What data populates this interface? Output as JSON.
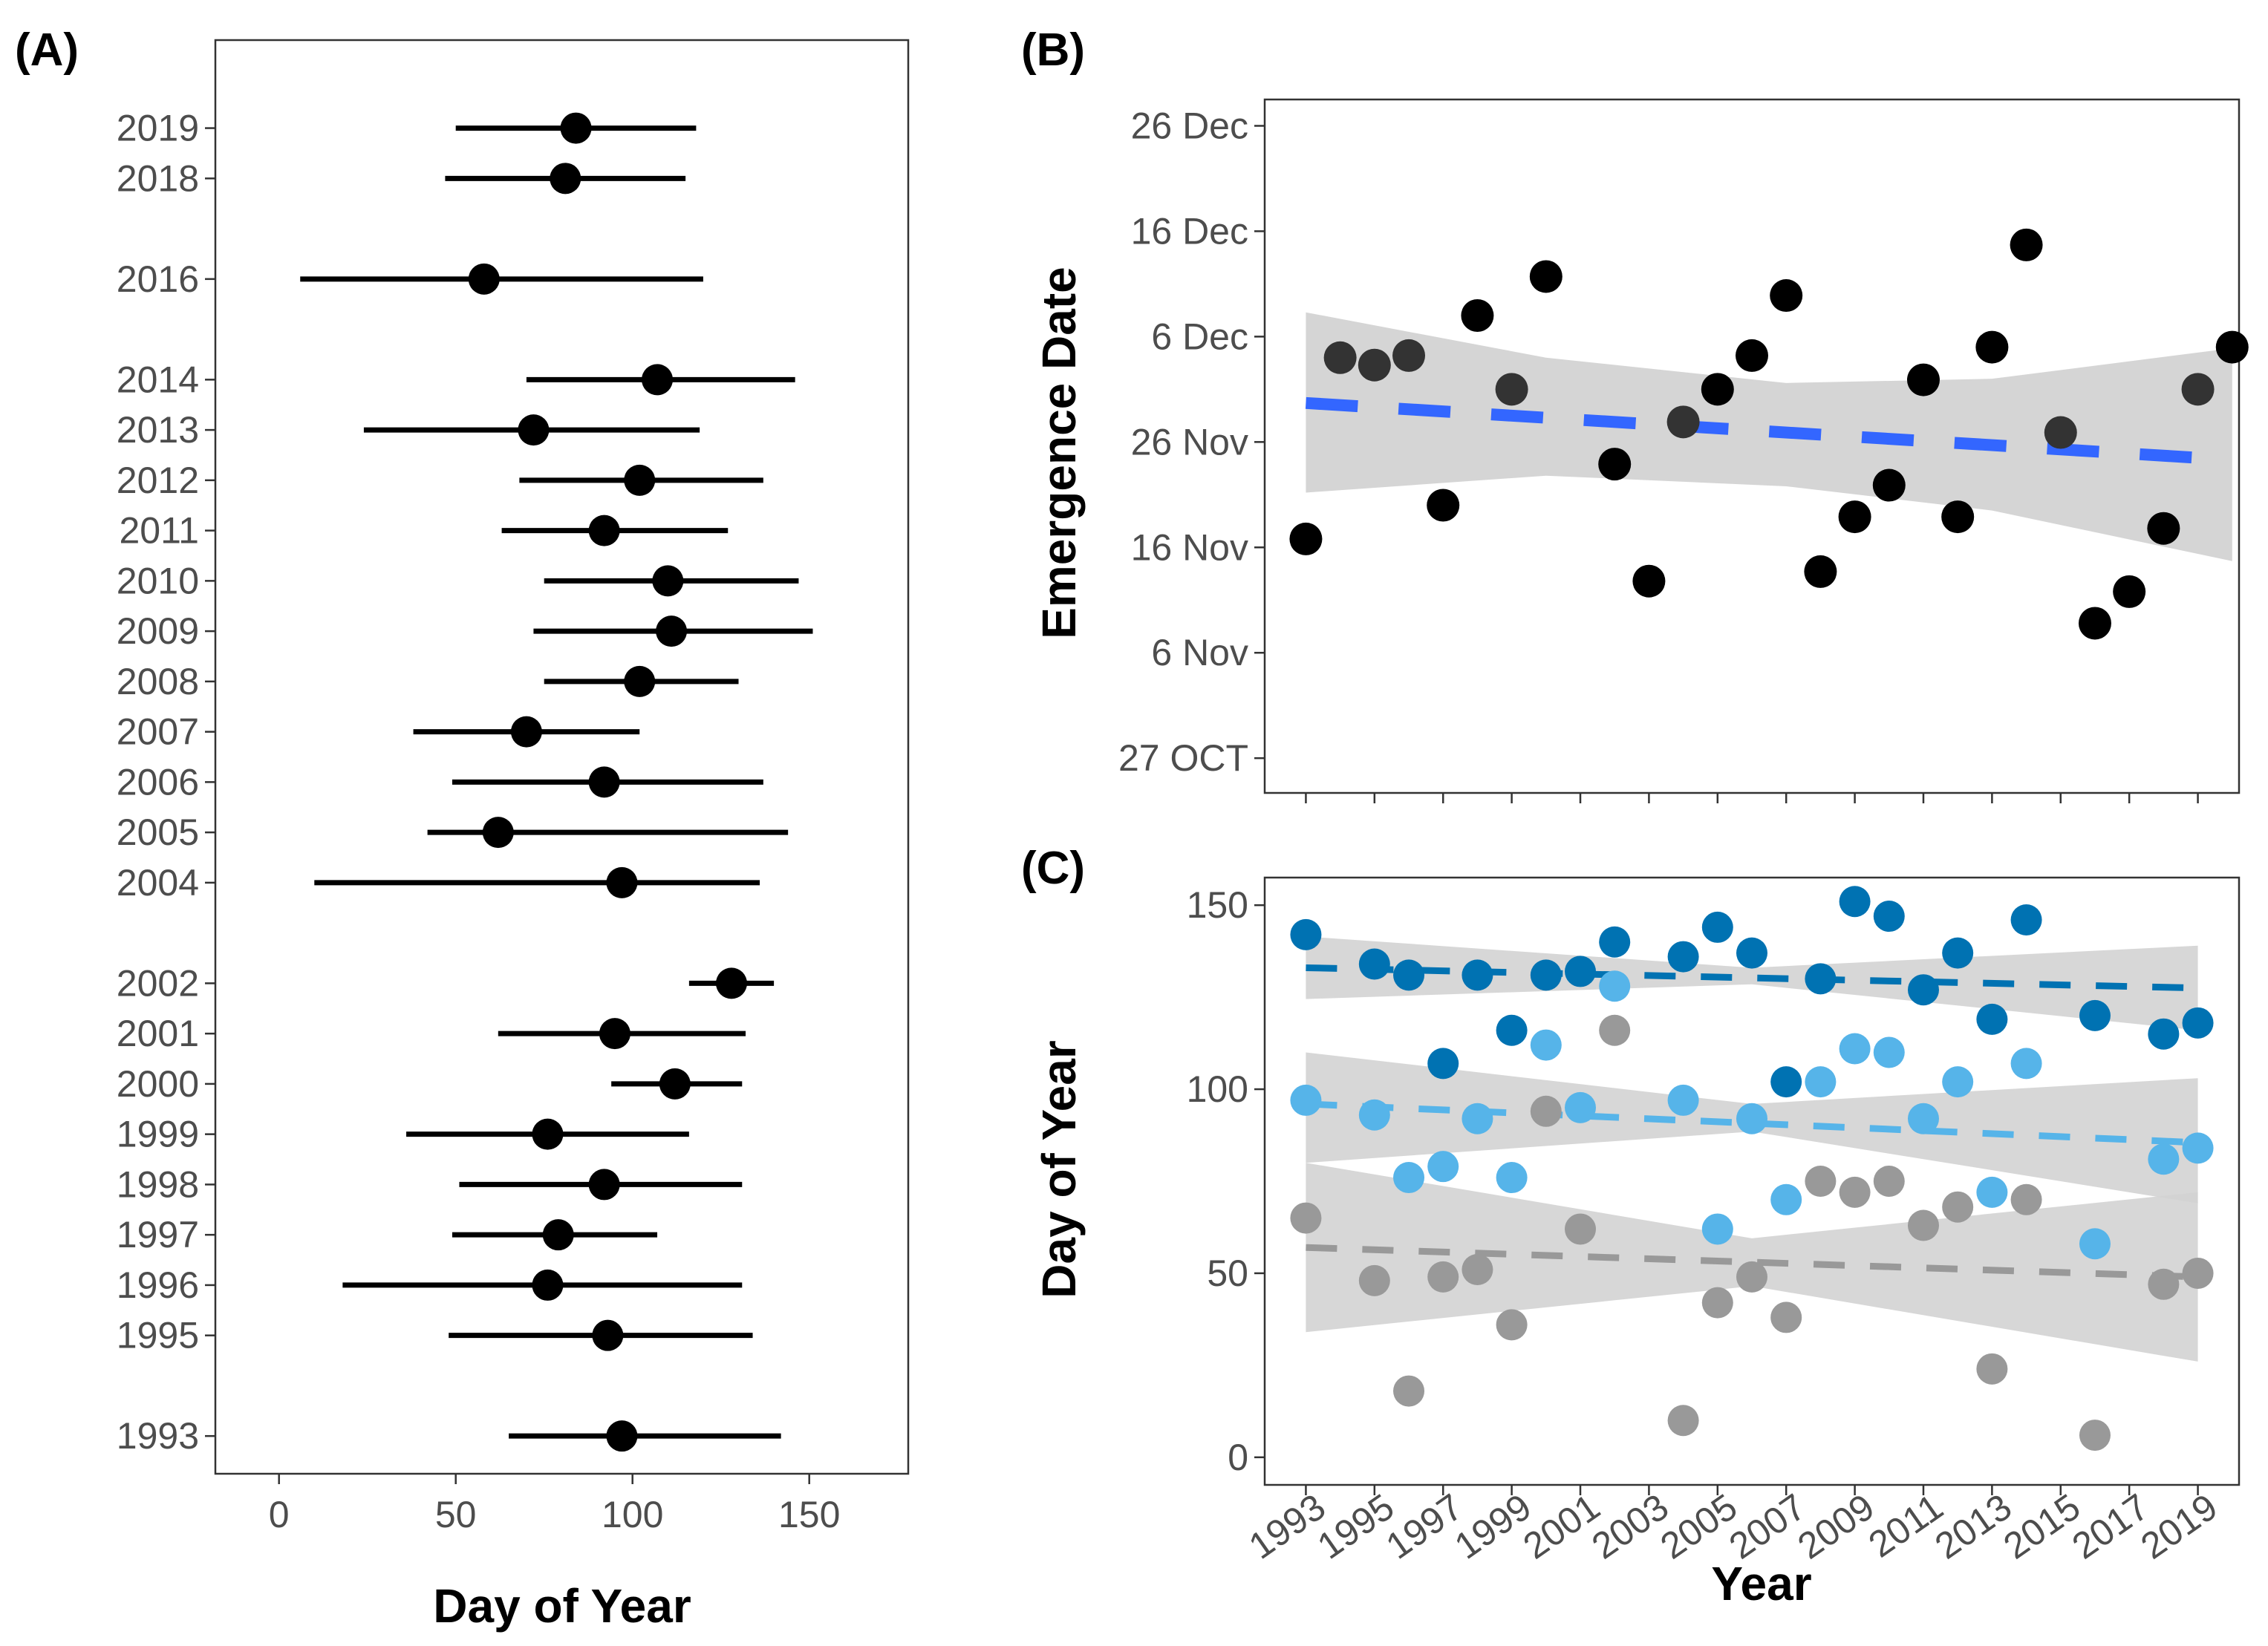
{
  "figure": {
    "panel_labels": {
      "a": "(A)",
      "b": "(B)",
      "c": "(C)"
    },
    "colors": {
      "points": "#000000",
      "ribbon": "#d3d3d3",
      "trend_b": "#3366ff",
      "early": "#0072b2",
      "mid": "#56b4e9",
      "late": "#999999",
      "axis": "#333333",
      "tick_text": "#4d4d4d"
    }
  },
  "chart_data": [
    {
      "id": "A",
      "type": "scatter",
      "title": "",
      "xlabel": "Day of Year",
      "ylabel": "",
      "xlim": [
        -18,
        178
      ],
      "xticks": [
        0,
        50,
        100,
        150
      ],
      "ylim": [
        1992.25,
        2020.75
      ],
      "grid": false,
      "rows": [
        {
          "year": 2019,
          "label": "2019",
          "mean": 84,
          "low": 50,
          "high": 118
        },
        {
          "year": 2018,
          "label": "2018",
          "mean": 81,
          "low": 47,
          "high": 115
        },
        {
          "year": 2016,
          "label": "2016",
          "mean": 58,
          "low": 6,
          "high": 120
        },
        {
          "year": 2014,
          "label": "2014",
          "mean": 107,
          "low": 70,
          "high": 146
        },
        {
          "year": 2013,
          "label": "2013",
          "mean": 72,
          "low": 24,
          "high": 119
        },
        {
          "year": 2012,
          "label": "2012",
          "mean": 102,
          "low": 68,
          "high": 137
        },
        {
          "year": 2011,
          "label": "2011",
          "mean": 92,
          "low": 63,
          "high": 127
        },
        {
          "year": 2010,
          "label": "2010",
          "mean": 110,
          "low": 75,
          "high": 147
        },
        {
          "year": 2009,
          "label": "2009",
          "mean": 111,
          "low": 72,
          "high": 151
        },
        {
          "year": 2008,
          "label": "2008",
          "mean": 102,
          "low": 75,
          "high": 130
        },
        {
          "year": 2007,
          "label": "2007",
          "mean": 70,
          "low": 38,
          "high": 102
        },
        {
          "year": 2006,
          "label": "2006",
          "mean": 92,
          "low": 49,
          "high": 137
        },
        {
          "year": 2005,
          "label": "2005",
          "mean": 62,
          "low": 42,
          "high": 144
        },
        {
          "year": 2004,
          "label": "2004",
          "mean": 97,
          "low": 10,
          "high": 136
        },
        {
          "year": 2002,
          "label": "2002",
          "mean": 128,
          "low": 116,
          "high": 140
        },
        {
          "year": 2001,
          "label": "2001",
          "mean": 95,
          "low": 62,
          "high": 132
        },
        {
          "year": 2000,
          "label": "2000",
          "mean": 112,
          "low": 94,
          "high": 131
        },
        {
          "year": 1999,
          "label": "1999",
          "mean": 76,
          "low": 36,
          "high": 116
        },
        {
          "year": 1998,
          "label": "1998",
          "mean": 92,
          "low": 51,
          "high": 131
        },
        {
          "year": 1997,
          "label": "1997",
          "mean": 79,
          "low": 49,
          "high": 107
        },
        {
          "year": 1996,
          "label": "1996",
          "mean": 76,
          "low": 18,
          "high": 131
        },
        {
          "year": 1995,
          "label": "1995",
          "mean": 93,
          "low": 48,
          "high": 134
        },
        {
          "year": 1993,
          "label": "1993",
          "mean": 97,
          "low": 65,
          "high": 142
        }
      ]
    },
    {
      "id": "B",
      "type": "scatter",
      "title": "",
      "xlabel": "",
      "ylabel": "Emergence Date",
      "ylim_days": [
        -3.3,
        62.5
      ],
      "yticks": [
        {
          "value": 0,
          "label": "27 OCT"
        },
        {
          "value": 10,
          "label": "6 Nov"
        },
        {
          "value": 20,
          "label": "16 Nov"
        },
        {
          "value": 30,
          "label": "26 Nov"
        },
        {
          "value": 40,
          "label": "6 Dec"
        },
        {
          "value": 50,
          "label": "16 Dec"
        },
        {
          "value": 60,
          "label": "26 Dec"
        }
      ],
      "xlim": [
        1991.8,
        2020.2
      ],
      "grid": false,
      "points": [
        {
          "year": 1993,
          "value": 20.8,
          "overlap": false
        },
        {
          "year": 1994,
          "value": 38.0,
          "overlap": true
        },
        {
          "year": 1995,
          "value": 37.3,
          "overlap": true
        },
        {
          "year": 1996,
          "value": 38.2,
          "overlap": true
        },
        {
          "year": 1997,
          "value": 24.0,
          "overlap": false
        },
        {
          "year": 1998,
          "value": 42.0,
          "overlap": false
        },
        {
          "year": 1999,
          "value": 35.0,
          "overlap": true
        },
        {
          "year": 2000,
          "value": 45.7,
          "overlap": false
        },
        {
          "year": 2002,
          "value": 27.9,
          "overlap": false
        },
        {
          "year": 2003,
          "value": 16.8,
          "overlap": false
        },
        {
          "year": 2004,
          "value": 31.9,
          "overlap": true
        },
        {
          "year": 2005,
          "value": 35.0,
          "overlap": false
        },
        {
          "year": 2006,
          "value": 38.2,
          "overlap": false
        },
        {
          "year": 2007,
          "value": 43.9,
          "overlap": false
        },
        {
          "year": 2008,
          "value": 17.7,
          "overlap": false
        },
        {
          "year": 2009,
          "value": 22.9,
          "overlap": false
        },
        {
          "year": 2010,
          "value": 25.9,
          "overlap": false
        },
        {
          "year": 2011,
          "value": 35.9,
          "overlap": false
        },
        {
          "year": 2012,
          "value": 22.9,
          "overlap": false
        },
        {
          "year": 2013,
          "value": 39.0,
          "overlap": false
        },
        {
          "year": 2014,
          "value": 48.7,
          "overlap": false
        },
        {
          "year": 2015,
          "value": 30.9,
          "overlap": true
        },
        {
          "year": 2016,
          "value": 12.8,
          "overlap": false
        },
        {
          "year": 2017,
          "value": 15.8,
          "overlap": false
        },
        {
          "year": 2018,
          "value": 21.8,
          "overlap": false
        },
        {
          "year": 2019,
          "value": 35.0,
          "overlap": true
        },
        {
          "year": 2020,
          "value": 39.0,
          "overlap": false
        }
      ],
      "trend": {
        "x": [
          1993,
          2020
        ],
        "y": [
          33.7,
          28.3
        ]
      },
      "ribbon": {
        "x": [
          1993,
          2000,
          2007,
          2013,
          2020
        ],
        "upper": [
          42.3,
          38.0,
          35.6,
          36.0,
          38.9
        ],
        "lower": [
          25.2,
          26.8,
          25.8,
          23.5,
          18.7
        ]
      }
    },
    {
      "id": "C",
      "type": "scatter",
      "title": "",
      "xlabel": "Year",
      "ylabel": "Day of Year",
      "ylim": [
        -7.5,
        157.5
      ],
      "yticks": [
        0,
        50,
        100,
        150
      ],
      "xlim": [
        1991.8,
        2020.2
      ],
      "xticks": [
        "1993",
        "1995",
        "1997",
        "1999",
        "2001",
        "2003",
        "2005",
        "2007",
        "2009",
        "2011",
        "2013",
        "2015",
        "2017",
        "2019"
      ],
      "grid": false,
      "series": [
        {
          "name": "early",
          "color": "#0072b2",
          "points": [
            {
              "year": 1993,
              "value": 142
            },
            {
              "year": 1995,
              "value": 134
            },
            {
              "year": 1996,
              "value": 131
            },
            {
              "year": 1997,
              "value": 107
            },
            {
              "year": 1998,
              "value": 131
            },
            {
              "year": 1999,
              "value": 116
            },
            {
              "year": 2000,
              "value": 131
            },
            {
              "year": 2001,
              "value": 132
            },
            {
              "year": 2002,
              "value": 140
            },
            {
              "year": 2004,
              "value": 136
            },
            {
              "year": 2005,
              "value": 144
            },
            {
              "year": 2006,
              "value": 137
            },
            {
              "year": 2007,
              "value": 102
            },
            {
              "year": 2008,
              "value": 130
            },
            {
              "year": 2009,
              "value": 151
            },
            {
              "year": 2010,
              "value": 147
            },
            {
              "year": 2011,
              "value": 127
            },
            {
              "year": 2012,
              "value": 137
            },
            {
              "year": 2013,
              "value": 119
            },
            {
              "year": 2014,
              "value": 146
            },
            {
              "year": 2016,
              "value": 120
            },
            {
              "year": 2018,
              "value": 115
            },
            {
              "year": 2019,
              "value": 118
            }
          ],
          "trend": {
            "x": [
              1993,
              2019
            ],
            "y": [
              133,
              127.5
            ]
          },
          "ribbon": {
            "x": [
              1993,
              2006,
              2019
            ],
            "upper": [
              141.5,
              133,
              139
            ],
            "lower": [
              124.5,
              128.5,
              116
            ]
          }
        },
        {
          "name": "mid",
          "color": "#56b4e9",
          "points": [
            {
              "year": 1993,
              "value": 97
            },
            {
              "year": 1995,
              "value": 93
            },
            {
              "year": 1996,
              "value": 76
            },
            {
              "year": 1997,
              "value": 79
            },
            {
              "year": 1998,
              "value": 92
            },
            {
              "year": 1999,
              "value": 76
            },
            {
              "year": 2000,
              "value": 112
            },
            {
              "year": 2001,
              "value": 95
            },
            {
              "year": 2002,
              "value": 128
            },
            {
              "year": 2004,
              "value": 97
            },
            {
              "year": 2005,
              "value": 62
            },
            {
              "year": 2006,
              "value": 92
            },
            {
              "year": 2007,
              "value": 70
            },
            {
              "year": 2008,
              "value": 102
            },
            {
              "year": 2009,
              "value": 111
            },
            {
              "year": 2010,
              "value": 110
            },
            {
              "year": 2011,
              "value": 92
            },
            {
              "year": 2012,
              "value": 102
            },
            {
              "year": 2013,
              "value": 72
            },
            {
              "year": 2014,
              "value": 107
            },
            {
              "year": 2016,
              "value": 58
            },
            {
              "year": 2018,
              "value": 81
            },
            {
              "year": 2019,
              "value": 84
            }
          ],
          "trend": {
            "x": [
              1993,
              2019
            ],
            "y": [
              96,
              85.5
            ]
          },
          "ribbon": {
            "x": [
              1993,
              2006,
              2019
            ],
            "upper": [
              110,
              96,
              103
            ],
            "lower": [
              80,
              88.5,
              69
            ]
          }
        },
        {
          "name": "late",
          "color": "#999999",
          "points": [
            {
              "year": 1993,
              "value": 65
            },
            {
              "year": 1995,
              "value": 48
            },
            {
              "year": 1996,
              "value": 18
            },
            {
              "year": 1997,
              "value": 49
            },
            {
              "year": 1998,
              "value": 51
            },
            {
              "year": 1999,
              "value": 36
            },
            {
              "year": 2000,
              "value": 94
            },
            {
              "year": 2001,
              "value": 62
            },
            {
              "year": 2002,
              "value": 116
            },
            {
              "year": 2004,
              "value": 10
            },
            {
              "year": 2005,
              "value": 42
            },
            {
              "year": 2006,
              "value": 49
            },
            {
              "year": 2007,
              "value": 38
            },
            {
              "year": 2008,
              "value": 75
            },
            {
              "year": 2009,
              "value": 72
            },
            {
              "year": 2010,
              "value": 75
            },
            {
              "year": 2011,
              "value": 63
            },
            {
              "year": 2012,
              "value": 68
            },
            {
              "year": 2013,
              "value": 24
            },
            {
              "year": 2014,
              "value": 70
            },
            {
              "year": 2016,
              "value": 6
            },
            {
              "year": 2018,
              "value": 47
            },
            {
              "year": 2019,
              "value": 50
            }
          ],
          "trend": {
            "x": [
              1993,
              2019
            ],
            "y": [
              57,
              49
            ]
          },
          "ribbon": {
            "x": [
              1993,
              2006,
              2019
            ],
            "upper": [
              80,
              59.5,
              72
            ],
            "lower": [
              34,
              46.5,
              26
            ]
          }
        }
      ]
    }
  ]
}
